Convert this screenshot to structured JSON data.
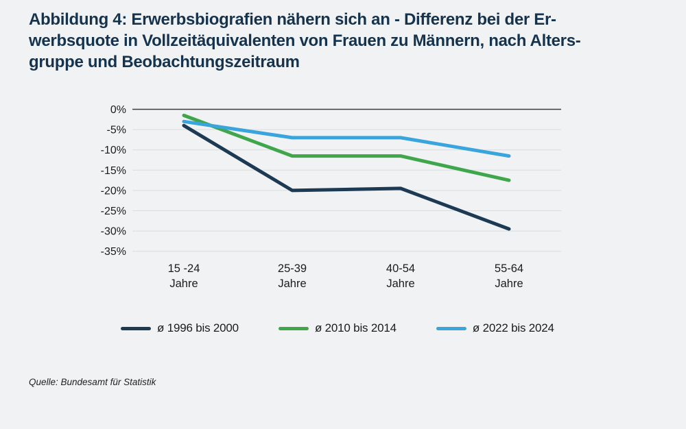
{
  "title": "Abbildung 4: Erwerbsbiografien nähern sich an - Differenz bei der Er-\nwerbsquote in Vollzeitäquivalenten von Frauen zu Männern, nach Alters-\ngruppe und Beobachtungszeitraum",
  "source": "Quelle: Bundesamt für Statistik",
  "colors": {
    "background": "#f0f2f3",
    "title": "#16334e",
    "grid": "#d9dcde",
    "zero_line": "#383d42",
    "axis_text": "#1b1b1b"
  },
  "chart_data": {
    "type": "line",
    "categories": [
      "15 -24\nJahre",
      "25-39\nJahre",
      "40-54\nJahre",
      "55-64\nJahre"
    ],
    "series": [
      {
        "name": "ø 1996 bis 2000",
        "color": "#1d3a55",
        "values": [
          -4,
          -20,
          -19.5,
          -29.5
        ]
      },
      {
        "name": "ø 2010 bis 2014",
        "color": "#3fa64c",
        "values": [
          -1.5,
          -11.5,
          -11.5,
          -17.5
        ]
      },
      {
        "name": "ø 2022 bis 2024",
        "color": "#39a5dc",
        "values": [
          -3,
          -7,
          -7,
          -11.5
        ]
      }
    ],
    "yticks": [
      {
        "value": 0,
        "label": "0%"
      },
      {
        "value": -5,
        "label": "-5%"
      },
      {
        "value": -10,
        "label": "-10%"
      },
      {
        "value": -15,
        "label": "-15%"
      },
      {
        "value": -20,
        "label": "-20%"
      },
      {
        "value": -25,
        "label": "-25%"
      },
      {
        "value": -30,
        "label": "-30%"
      },
      {
        "value": -35,
        "label": "-35%"
      }
    ],
    "ylim": [
      -35,
      0
    ],
    "xlabel": "",
    "ylabel": "",
    "grid": true,
    "legend_position": "bottom"
  }
}
